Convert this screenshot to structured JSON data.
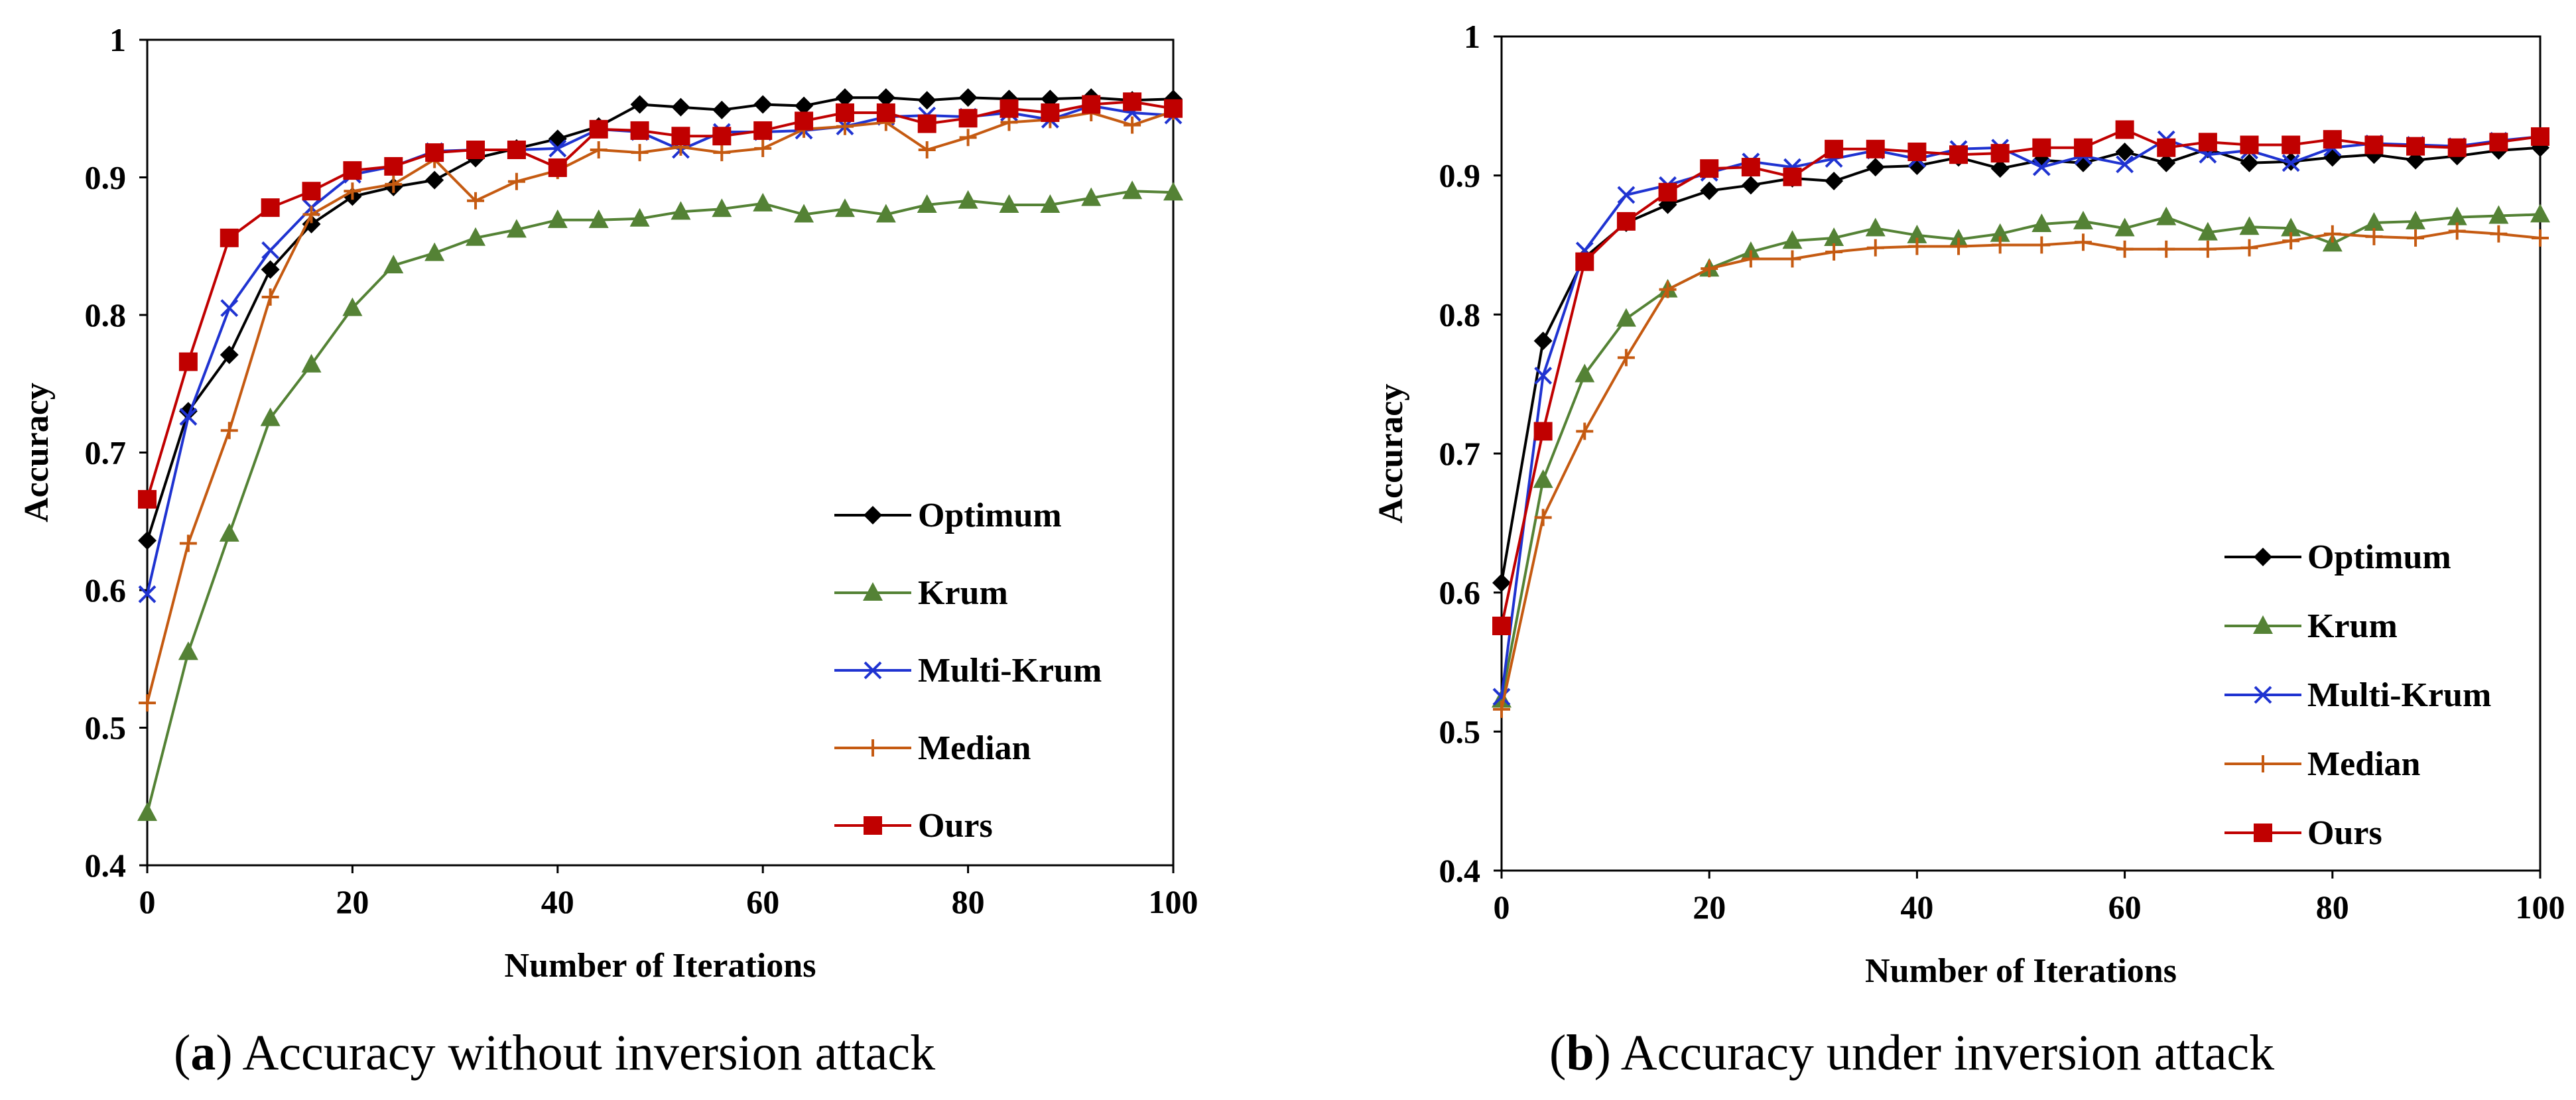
{
  "chart_data": [
    {
      "type": "line",
      "id": "a",
      "caption_letter": "a",
      "caption_text": "Accuracy without inversion attack",
      "xlabel": "Number of Iterations",
      "ylabel": "Accuracy",
      "xlim": [
        0,
        100
      ],
      "ylim": [
        0.4,
        1.0
      ],
      "xticks": [
        "0",
        "20",
        "40",
        "60",
        "80",
        "100"
      ],
      "yticks": [
        "0.4",
        "0.5",
        "0.6",
        "0.7",
        "0.8",
        "0.9",
        "1"
      ],
      "legend_position": "bottom-right",
      "x": [
        0,
        4,
        8,
        12,
        16,
        20,
        24,
        28,
        32,
        36,
        40,
        44,
        48,
        52,
        56,
        60,
        64,
        68,
        72,
        76,
        80,
        84,
        88,
        92,
        96,
        100
      ],
      "series": [
        {
          "name": "Optimum",
          "color": "#000000",
          "marker": "diamond",
          "values": [
            0.636,
            0.73,
            0.771,
            0.833,
            0.866,
            0.886,
            0.893,
            0.898,
            0.914,
            0.921,
            0.928,
            0.937,
            0.953,
            0.951,
            0.949,
            0.953,
            0.952,
            0.958,
            0.958,
            0.956,
            0.958,
            0.957,
            0.957,
            0.958,
            0.956,
            0.957
          ]
        },
        {
          "name": "Krum",
          "color": "#548235",
          "marker": "triangle",
          "values": [
            0.438,
            0.555,
            0.641,
            0.725,
            0.764,
            0.805,
            0.836,
            0.845,
            0.856,
            0.862,
            0.869,
            0.869,
            0.87,
            0.875,
            0.877,
            0.881,
            0.873,
            0.877,
            0.873,
            0.88,
            0.883,
            0.88,
            0.88,
            0.885,
            0.89,
            0.889
          ]
        },
        {
          "name": "Multi-Krum",
          "color": "#1f33d1",
          "marker": "x",
          "values": [
            0.597,
            0.726,
            0.805,
            0.847,
            0.878,
            0.902,
            0.908,
            0.919,
            0.92,
            0.92,
            0.921,
            0.935,
            0.933,
            0.92,
            0.933,
            0.933,
            0.934,
            0.937,
            0.944,
            0.945,
            0.944,
            0.947,
            0.942,
            0.952,
            0.947,
            0.945
          ]
        },
        {
          "name": "Median",
          "color": "#c55a11",
          "marker": "plus",
          "values": [
            0.518,
            0.634,
            0.716,
            0.813,
            0.873,
            0.89,
            0.895,
            0.913,
            0.883,
            0.897,
            0.905,
            0.92,
            0.918,
            0.922,
            0.918,
            0.921,
            0.935,
            0.937,
            0.94,
            0.92,
            0.929,
            0.94,
            0.942,
            0.947,
            0.938,
            0.948
          ]
        },
        {
          "name": "Ours",
          "color": "#c00000",
          "marker": "square",
          "values": [
            0.666,
            0.766,
            0.856,
            0.878,
            0.89,
            0.905,
            0.908,
            0.918,
            0.92,
            0.92,
            0.907,
            0.935,
            0.934,
            0.93,
            0.93,
            0.934,
            0.941,
            0.947,
            0.947,
            0.939,
            0.943,
            0.95,
            0.947,
            0.953,
            0.955,
            0.95
          ]
        }
      ]
    },
    {
      "type": "line",
      "id": "b",
      "caption_letter": "b",
      "caption_text": "Accuracy under inversion attack",
      "xlabel": "Number of Iterations",
      "ylabel": "Accuracy",
      "xlim": [
        0,
        100
      ],
      "ylim": [
        0.4,
        1.0
      ],
      "xticks": [
        "0",
        "20",
        "40",
        "60",
        "80",
        "100"
      ],
      "yticks": [
        "0.4",
        "0.5",
        "0.6",
        "0.7",
        "0.8",
        "0.9",
        "1"
      ],
      "legend_position": "bottom-right",
      "x": [
        0,
        4,
        8,
        12,
        16,
        20,
        24,
        28,
        32,
        36,
        40,
        44,
        48,
        52,
        56,
        60,
        64,
        68,
        72,
        76,
        80,
        84,
        88,
        92,
        96,
        100
      ],
      "series": [
        {
          "name": "Optimum",
          "color": "#000000",
          "marker": "diamond",
          "values": [
            0.607,
            0.781,
            0.841,
            0.866,
            0.879,
            0.889,
            0.893,
            0.898,
            0.896,
            0.906,
            0.907,
            0.913,
            0.905,
            0.911,
            0.909,
            0.917,
            0.909,
            0.919,
            0.909,
            0.91,
            0.913,
            0.915,
            0.911,
            0.914,
            0.918,
            0.92
          ]
        },
        {
          "name": "Krum",
          "color": "#548235",
          "marker": "triangle",
          "values": [
            0.523,
            0.681,
            0.757,
            0.797,
            0.818,
            0.833,
            0.845,
            0.853,
            0.855,
            0.862,
            0.857,
            0.854,
            0.858,
            0.865,
            0.867,
            0.862,
            0.87,
            0.859,
            0.863,
            0.862,
            0.851,
            0.866,
            0.867,
            0.87,
            0.871,
            0.872
          ]
        },
        {
          "name": "Multi-Krum",
          "color": "#1f33d1",
          "marker": "x",
          "values": [
            0.525,
            0.756,
            0.846,
            0.886,
            0.893,
            0.902,
            0.91,
            0.906,
            0.912,
            0.918,
            0.912,
            0.919,
            0.92,
            0.906,
            0.914,
            0.908,
            0.926,
            0.915,
            0.918,
            0.909,
            0.92,
            0.923,
            0.922,
            0.921,
            0.925,
            0.928
          ]
        },
        {
          "name": "Median",
          "color": "#c55a11",
          "marker": "plus",
          "values": [
            0.516,
            0.654,
            0.716,
            0.769,
            0.818,
            0.833,
            0.84,
            0.84,
            0.845,
            0.848,
            0.849,
            0.849,
            0.85,
            0.85,
            0.852,
            0.847,
            0.847,
            0.847,
            0.848,
            0.853,
            0.858,
            0.856,
            0.855,
            0.86,
            0.858,
            0.855
          ]
        },
        {
          "name": "Ours",
          "color": "#c00000",
          "marker": "square",
          "values": [
            0.576,
            0.716,
            0.838,
            0.867,
            0.888,
            0.905,
            0.906,
            0.899,
            0.919,
            0.919,
            0.917,
            0.915,
            0.916,
            0.92,
            0.92,
            0.933,
            0.92,
            0.924,
            0.922,
            0.922,
            0.926,
            0.922,
            0.921,
            0.92,
            0.924,
            0.928
          ]
        }
      ]
    }
  ]
}
